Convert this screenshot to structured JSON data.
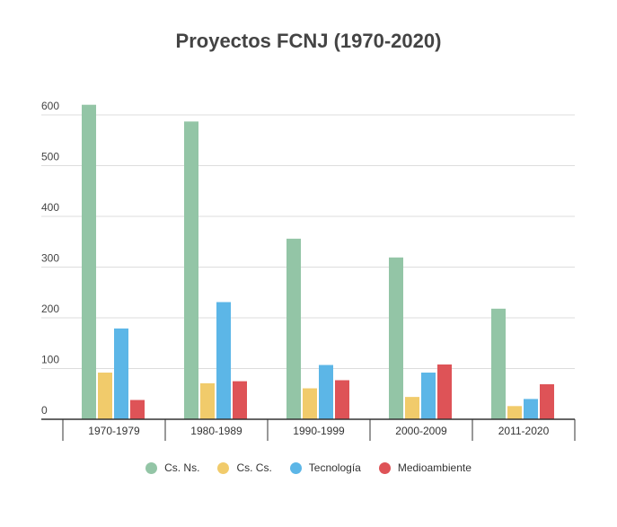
{
  "chart_data": {
    "type": "bar",
    "title": "Proyectos FCNJ (1970-2020)",
    "xlabel": "",
    "ylabel": "",
    "categories": [
      "1970-1979",
      "1980-1989",
      "1990-1999",
      "2000-2009",
      "2011-2020"
    ],
    "ylim": [
      0,
      600
    ],
    "yticks": [
      0,
      100,
      200,
      300,
      400,
      500,
      600
    ],
    "grid": true,
    "legend_position": "bottom",
    "series": [
      {
        "name": "Cs. Ns.",
        "color": "#93c5a6",
        "values": [
          620,
          587,
          356,
          319,
          218
        ]
      },
      {
        "name": "Cs. Cs.",
        "color": "#f1cb6b",
        "values": [
          92,
          71,
          61,
          44,
          26
        ]
      },
      {
        "name": "Tecnología",
        "color": "#5cb6e7",
        "values": [
          179,
          231,
          107,
          92,
          40
        ]
      },
      {
        "name": "Medioambiente",
        "color": "#de5357",
        "values": [
          38,
          75,
          77,
          108,
          69
        ]
      }
    ]
  }
}
